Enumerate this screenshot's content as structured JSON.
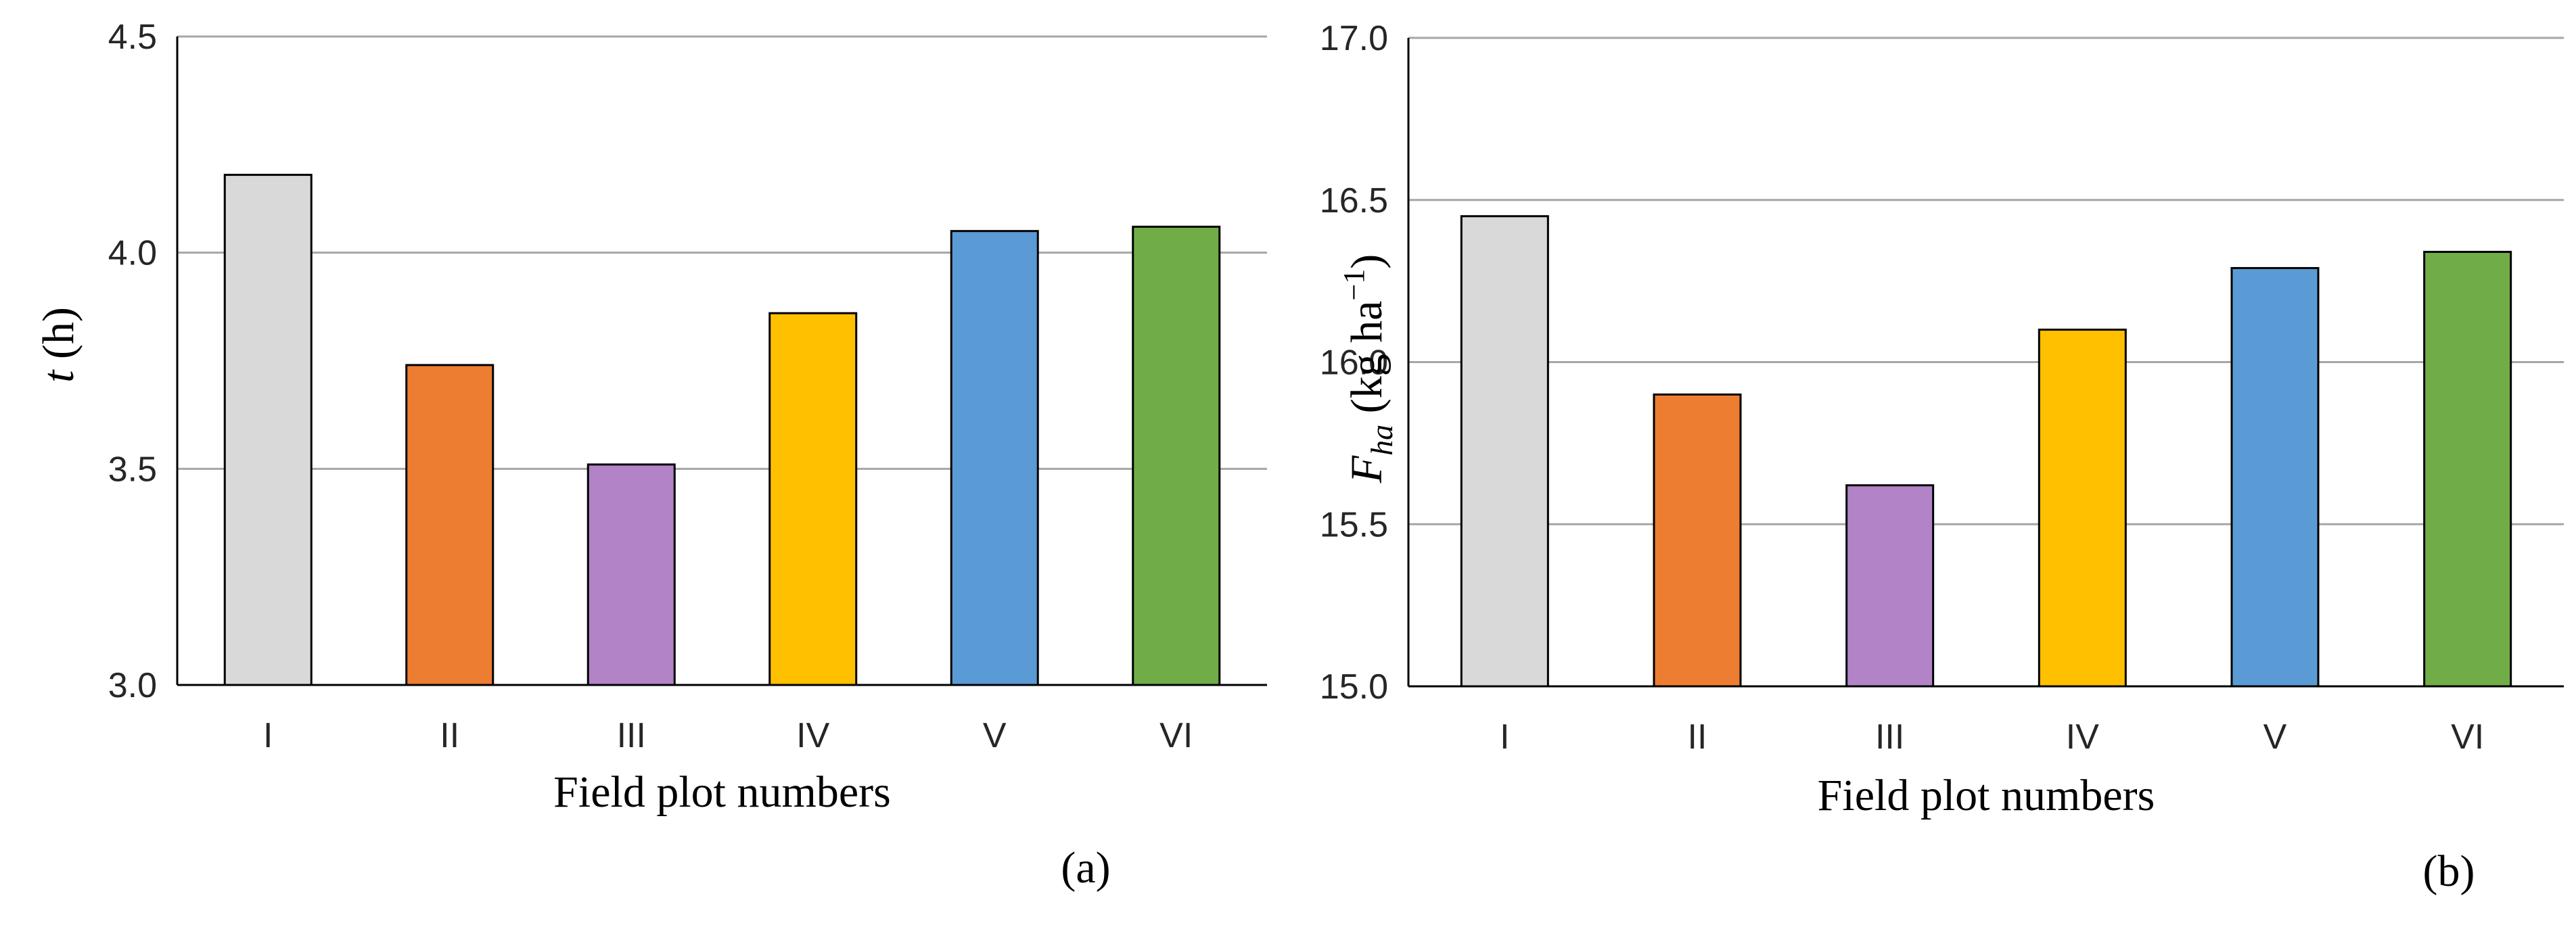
{
  "chart_data": [
    {
      "type": "bar",
      "title": "",
      "panel_label": "(a)",
      "xlabel": "Field plot numbers",
      "ylabel": {
        "symbol": "t",
        "unit": "(h)"
      },
      "categories": [
        "I",
        "II",
        "III",
        "IV",
        "V",
        "VI"
      ],
      "values": [
        4.18,
        3.74,
        3.51,
        3.86,
        4.05,
        4.06
      ],
      "colors": [
        "#d9d9d9",
        "#ed7d31",
        "#b283c6",
        "#ffc000",
        "#5b9bd5",
        "#70ad47"
      ],
      "ylim": [
        3.0,
        4.5
      ],
      "yticks": [
        "3.0",
        "3.5",
        "4.0",
        "4.5"
      ],
      "grid": true
    },
    {
      "type": "bar",
      "title": "",
      "panel_label": "(b)",
      "xlabel": "Field plot numbers",
      "ylabel": {
        "symbol": "F",
        "subscript": "ha",
        "unit_open": "(kg ha",
        "unit_sup": "−1",
        "unit_close": ")"
      },
      "categories": [
        "I",
        "II",
        "III",
        "IV",
        "V",
        "VI"
      ],
      "values": [
        16.45,
        15.9,
        15.62,
        16.1,
        16.29,
        16.34
      ],
      "colors": [
        "#d9d9d9",
        "#ed7d31",
        "#b283c6",
        "#ffc000",
        "#5b9bd5",
        "#70ad47"
      ],
      "ylim": [
        15.0,
        17.0
      ],
      "yticks": [
        "15.0",
        "15.5",
        "16.0",
        "16.5",
        "17.0"
      ],
      "grid": true
    }
  ]
}
